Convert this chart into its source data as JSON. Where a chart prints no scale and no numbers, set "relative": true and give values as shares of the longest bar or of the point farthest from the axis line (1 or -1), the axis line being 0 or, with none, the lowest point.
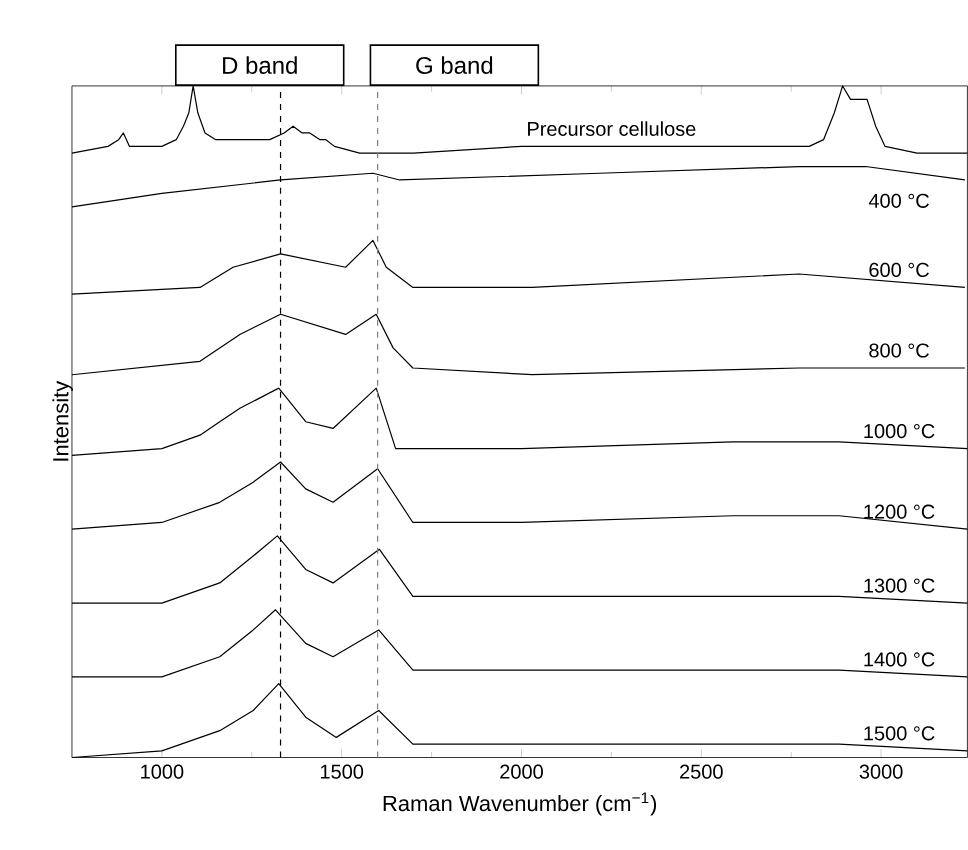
{
  "chart_data": {
    "type": "line",
    "relative": true,
    "xlabel": "Raman Wavenumber (cm$^{−1}$)",
    "ylabel": "Intensity",
    "xlim": [
      750,
      3240
    ],
    "xticks": [
      1000,
      1500,
      2000,
      2500,
      3000
    ],
    "tick_labels": "x",
    "legend": false,
    "ref_lines": [
      {
        "axis": "x",
        "value": 1330,
        "label": "D band",
        "color": "#000000",
        "line_style": "dashed"
      },
      {
        "axis": "x",
        "value": 1600,
        "label": "G band",
        "color": "#808080",
        "line_style": "dashed"
      }
    ],
    "series": [
      {
        "name": "Precursor cellulose",
        "color": "#000000",
        "x": [
          750,
          850,
          880,
          893,
          910,
          1000,
          1040,
          1060,
          1075,
          1087,
          1100,
          1120,
          1150,
          1200,
          1250,
          1300,
          1340,
          1365,
          1390,
          1411,
          1440,
          1456,
          1480,
          1550,
          1700,
          2000,
          2300,
          2600,
          2800,
          2840,
          2870,
          2893,
          2915,
          2929,
          2961,
          2985,
          3011,
          3100,
          3240
        ],
        "values": [
          0.9,
          0.91,
          0.92,
          0.93,
          0.91,
          0.91,
          0.92,
          0.94,
          0.96,
          1.0,
          0.96,
          0.93,
          0.92,
          0.92,
          0.92,
          0.92,
          0.93,
          0.94,
          0.93,
          0.93,
          0.92,
          0.92,
          0.91,
          0.9,
          0.9,
          0.91,
          0.91,
          0.91,
          0.91,
          0.92,
          0.96,
          1.0,
          0.98,
          0.98,
          0.98,
          0.94,
          0.91,
          0.9,
          0.9
        ]
      },
      {
        "name": "400 °C",
        "color": "#000000",
        "x": [
          750,
          1000,
          1330,
          1587,
          1661,
          2217,
          2772,
          2957,
          3233
        ],
        "values": [
          0.82,
          0.84,
          0.86,
          0.87,
          0.86,
          0.87,
          0.88,
          0.88,
          0.86
        ]
      },
      {
        "name": "600 °C",
        "color": "#000000",
        "x": [
          750,
          1106,
          1198,
          1330,
          1511,
          1587,
          1624,
          1698,
          2030,
          2772,
          3233
        ],
        "values": [
          0.69,
          0.7,
          0.73,
          0.75,
          0.73,
          0.77,
          0.73,
          0.7,
          0.7,
          0.72,
          0.7
        ]
      },
      {
        "name": "800 °C",
        "color": "#000000",
        "x": [
          750,
          1106,
          1217,
          1330,
          1511,
          1596,
          1643,
          1698,
          2030,
          2772,
          3233
        ],
        "values": [
          0.57,
          0.59,
          0.63,
          0.66,
          0.63,
          0.66,
          0.61,
          0.58,
          0.57,
          0.58,
          0.58
        ]
      },
      {
        "name": "1000 °C",
        "color": "#000000",
        "x": [
          750,
          1000,
          1106,
          1161,
          1217,
          1325,
          1400,
          1476,
          1596,
          1650,
          2000,
          2587,
          2883,
          3240
        ],
        "values": [
          0.45,
          0.46,
          0.48,
          0.5,
          0.52,
          0.55,
          0.5,
          0.49,
          0.55,
          0.46,
          0.46,
          0.47,
          0.47,
          0.46
        ]
      },
      {
        "name": "1200 °C",
        "color": "#000000",
        "x": [
          750,
          1000,
          1161,
          1254,
          1330,
          1400,
          1476,
          1600,
          1698,
          2000,
          2587,
          2883,
          3240
        ],
        "values": [
          0.34,
          0.35,
          0.38,
          0.41,
          0.44,
          0.4,
          0.38,
          0.43,
          0.35,
          0.35,
          0.36,
          0.36,
          0.34
        ]
      },
      {
        "name": "1300 °C",
        "color": "#000000",
        "x": [
          750,
          1000,
          1161,
          1254,
          1321,
          1400,
          1476,
          1605,
          1698,
          2000,
          2587,
          2883,
          3240
        ],
        "values": [
          0.23,
          0.23,
          0.26,
          0.3,
          0.33,
          0.28,
          0.26,
          0.31,
          0.24,
          0.24,
          0.24,
          0.24,
          0.23
        ]
      },
      {
        "name": "1400 °C",
        "color": "#000000",
        "x": [
          750,
          1000,
          1161,
          1254,
          1316,
          1400,
          1476,
          1603,
          1698,
          2000,
          2587,
          2883,
          3240
        ],
        "values": [
          0.12,
          0.12,
          0.15,
          0.19,
          0.22,
          0.17,
          0.15,
          0.19,
          0.13,
          0.13,
          0.13,
          0.13,
          0.12
        ]
      },
      {
        "name": "1500 °C",
        "color": "#000000",
        "x": [
          750,
          1000,
          1161,
          1254,
          1325,
          1400,
          1485,
          1603,
          1698,
          2000,
          2587,
          2883,
          3240
        ],
        "values": [
          0.0,
          0.01,
          0.04,
          0.07,
          0.11,
          0.06,
          0.03,
          0.07,
          0.02,
          0.02,
          0.02,
          0.02,
          0.01
        ]
      }
    ]
  }
}
